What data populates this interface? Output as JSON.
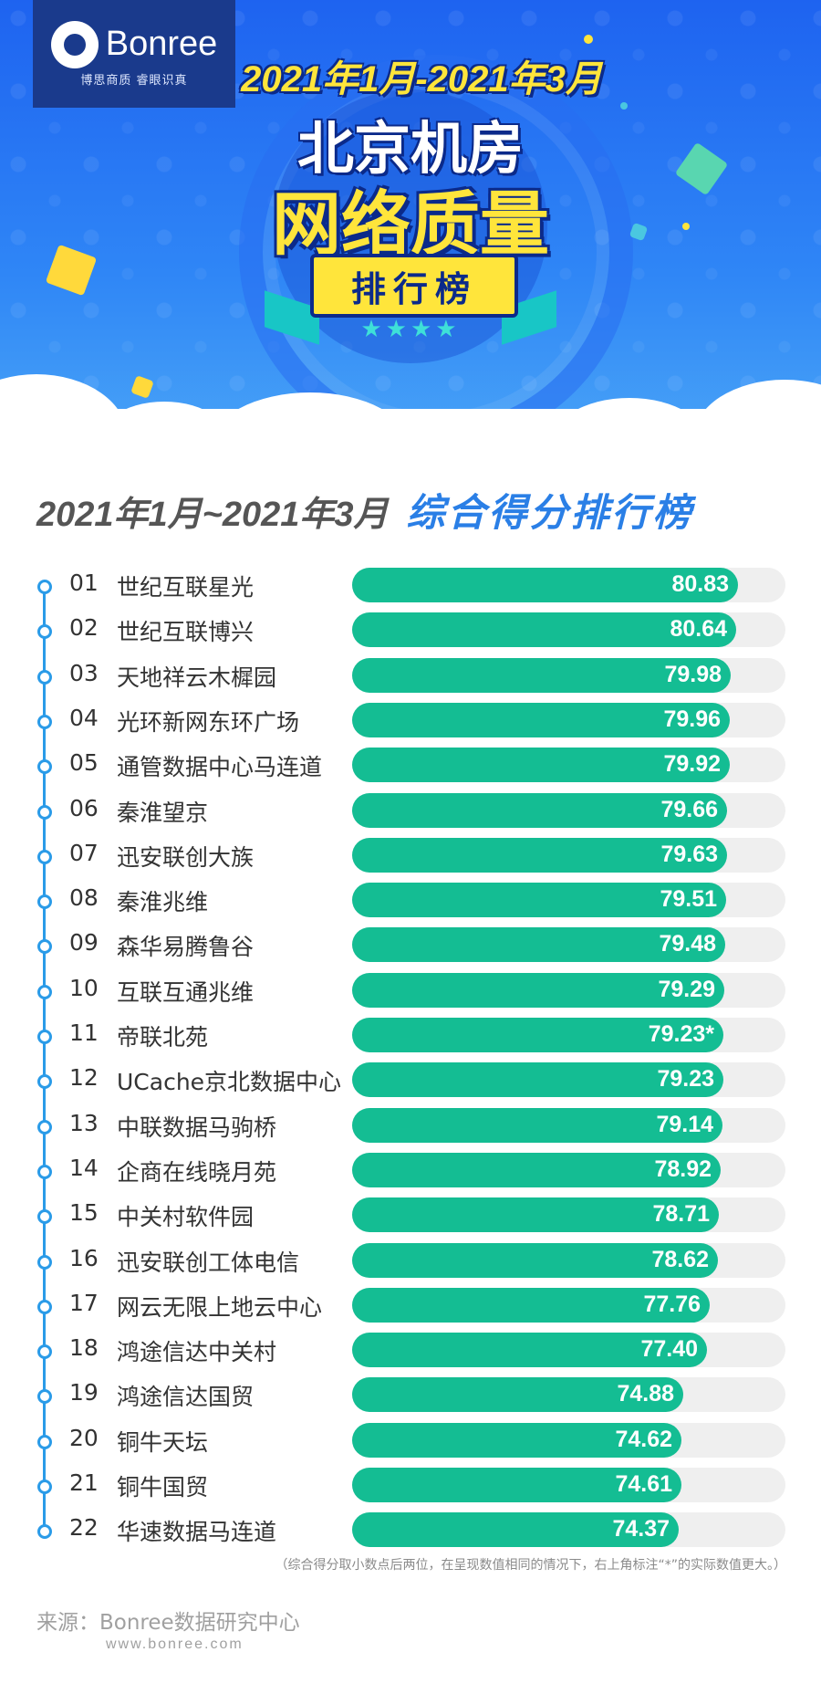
{
  "header": {
    "logo_text": "Bonree",
    "logo_subtitle": "博思商质 睿眼识真",
    "date_range": "2021年1月-2021年3月",
    "title_line1": "北京机房",
    "title_line2": "网络质量",
    "ribbon_label": "排行榜",
    "stars": "★★★★",
    "colors": {
      "primary_blue": "#1e63f0",
      "yellow": "#ffe53b",
      "navy": "#0b2a8a",
      "teal": "#18c6c6"
    }
  },
  "section": {
    "date_range": "2021年1月~2021年3月",
    "title": "综合得分排行榜"
  },
  "chart_data": {
    "type": "bar",
    "orientation": "horizontal",
    "title": "综合得分排行榜",
    "ylim": [
      0,
      100
    ],
    "bar_color": "#14bd93",
    "track_color": "#efefef",
    "rows": [
      {
        "rank": "01",
        "name": "世纪互联星光",
        "value": 80.83,
        "label": "80.83"
      },
      {
        "rank": "02",
        "name": "世纪互联博兴",
        "value": 80.64,
        "label": "80.64"
      },
      {
        "rank": "03",
        "name": "天地祥云木樨园",
        "value": 79.98,
        "label": "79.98"
      },
      {
        "rank": "04",
        "name": "光环新网东环广场",
        "value": 79.96,
        "label": "79.96"
      },
      {
        "rank": "05",
        "name": "通管数据中心马连道",
        "value": 79.92,
        "label": "79.92"
      },
      {
        "rank": "06",
        "name": "秦淮望京",
        "value": 79.66,
        "label": "79.66"
      },
      {
        "rank": "07",
        "name": "迅安联创大族",
        "value": 79.63,
        "label": "79.63"
      },
      {
        "rank": "08",
        "name": "秦淮兆维",
        "value": 79.51,
        "label": "79.51"
      },
      {
        "rank": "09",
        "name": "森华易腾鲁谷",
        "value": 79.48,
        "label": "79.48"
      },
      {
        "rank": "10",
        "name": "互联互通兆维",
        "value": 79.29,
        "label": "79.29"
      },
      {
        "rank": "11",
        "name": "帝联北苑",
        "value": 79.23,
        "label": "79.23*"
      },
      {
        "rank": "12",
        "name": "UCache京北数据中心",
        "value": 79.23,
        "label": "79.23"
      },
      {
        "rank": "13",
        "name": "中联数据马驹桥",
        "value": 79.14,
        "label": "79.14"
      },
      {
        "rank": "14",
        "name": "企商在线晓月苑",
        "value": 78.92,
        "label": "78.92"
      },
      {
        "rank": "15",
        "name": "中关村软件园",
        "value": 78.71,
        "label": "78.71"
      },
      {
        "rank": "16",
        "name": "迅安联创工体电信",
        "value": 78.62,
        "label": "78.62"
      },
      {
        "rank": "17",
        "name": "网云无限上地云中心",
        "value": 77.76,
        "label": "77.76"
      },
      {
        "rank": "18",
        "name": "鸿途信达中关村",
        "value": 77.4,
        "label": "77.40"
      },
      {
        "rank": "19",
        "name": "鸿途信达国贸",
        "value": 74.88,
        "label": "74.88"
      },
      {
        "rank": "20",
        "name": "铜牛天坛",
        "value": 74.62,
        "label": "74.62"
      },
      {
        "rank": "21",
        "name": "铜牛国贸",
        "value": 74.61,
        "label": "74.61"
      },
      {
        "rank": "22",
        "name": "华速数据马连道",
        "value": 74.37,
        "label": "74.37"
      }
    ]
  },
  "footer": {
    "note": "（综合得分取小数点后两位，在呈现数值相同的情况下，右上角标注“*”的实际数值更大。）",
    "source": "来源：Bonree数据研究中心",
    "website": "www.bonree.com"
  }
}
